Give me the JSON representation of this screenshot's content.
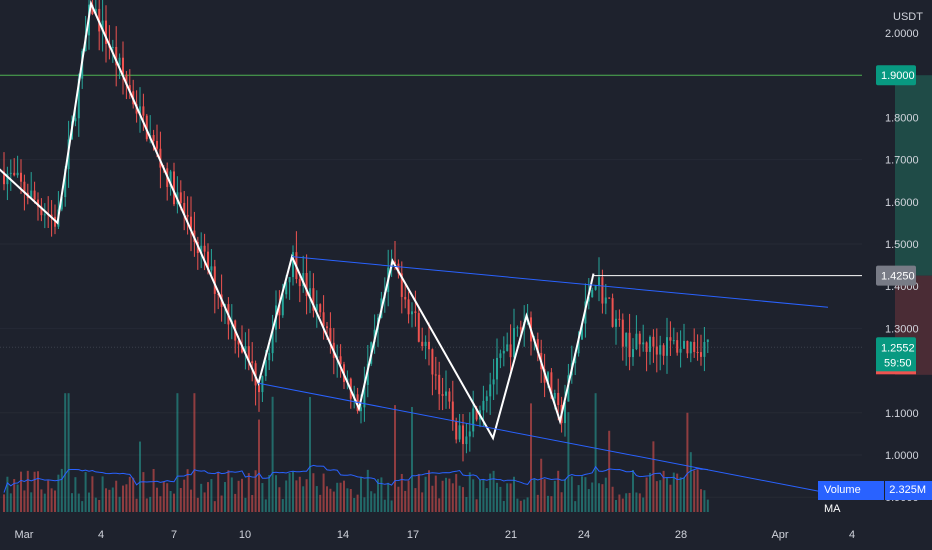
{
  "price_axis": {
    "unit": "USDT",
    "ticks": [
      "2.0000",
      "1.8000",
      "1.7000",
      "1.6000",
      "1.5000",
      "1.4000",
      "1.3000",
      "1.1000",
      "1.0000",
      "0.9000"
    ],
    "tags": {
      "target": {
        "label": "1.9000",
        "color": "#089981"
      },
      "entry": {
        "label": "1.4250",
        "color": "#787b86"
      },
      "last": {
        "label": "1.2552",
        "countdown": "59:50",
        "color": "#089981"
      }
    }
  },
  "time_axis": {
    "labels": [
      "Mar",
      "4",
      "7",
      "10",
      "14",
      "17",
      "21",
      "24",
      "28",
      "Apr",
      "4"
    ]
  },
  "indicator": {
    "label": "Volume MA",
    "value": "2.325M"
  },
  "colors": {
    "background": "#1e222d",
    "up": "#26a69a",
    "down": "#ef5350",
    "pattern_line": "#ffffff",
    "channel_line": "#2962ff",
    "volume_ma": "#2962ff",
    "target_zone": "#1f4b47",
    "stop_zone": "#4a2c35",
    "target_line": "#4caf50"
  },
  "chart_data": {
    "type": "candlestick",
    "x_range": [
      "2024-02-28",
      "2024-04-06"
    ],
    "y_range": [
      0.84,
      2.07
    ],
    "price_path": [
      [
        "2024-02-26",
        1.77
      ],
      [
        "2024-02-28",
        1.63
      ],
      [
        "2024-02-29",
        1.55
      ],
      [
        "2024-03-01",
        2.07
      ],
      [
        "2024-03-06",
        1.17
      ],
      [
        "2024-03-07",
        1.47
      ],
      [
        "2024-03-09",
        1.11
      ],
      [
        "2024-03-10",
        1.46
      ],
      [
        "2024-03-12",
        1.04
      ],
      [
        "2024-03-14",
        1.33
      ],
      [
        "2024-03-15",
        1.08
      ],
      [
        "2024-03-16",
        1.43
      ],
      [
        "2024-03-17",
        1.26
      ]
    ],
    "pattern_zigzag": [
      [
        "2024-02-26",
        1.77
      ],
      [
        "2024-02-29",
        1.55
      ],
      [
        "2024-03-01",
        2.07
      ],
      [
        "2024-03-06",
        1.17
      ],
      [
        "2024-03-07",
        1.47
      ],
      [
        "2024-03-09",
        1.11
      ],
      [
        "2024-03-10",
        1.46
      ],
      [
        "2024-03-13",
        1.04
      ],
      [
        "2024-03-14",
        1.33
      ],
      [
        "2024-03-15",
        1.08
      ],
      [
        "2024-03-16",
        1.43
      ]
    ],
    "channel_upper": [
      [
        "2024-03-07",
        1.47
      ],
      [
        "2024-03-23",
        1.35
      ]
    ],
    "channel_lower": [
      [
        "2024-03-06",
        1.17
      ],
      [
        "2024-03-23",
        0.91
      ]
    ],
    "position": {
      "entry": 1.425,
      "target": 1.9,
      "stop": 1.19,
      "from": "2024-03-25",
      "to": "2024-03-30"
    },
    "last_price": 1.2552,
    "volume_max": 6.6,
    "volume_ma_max": 2.8
  }
}
